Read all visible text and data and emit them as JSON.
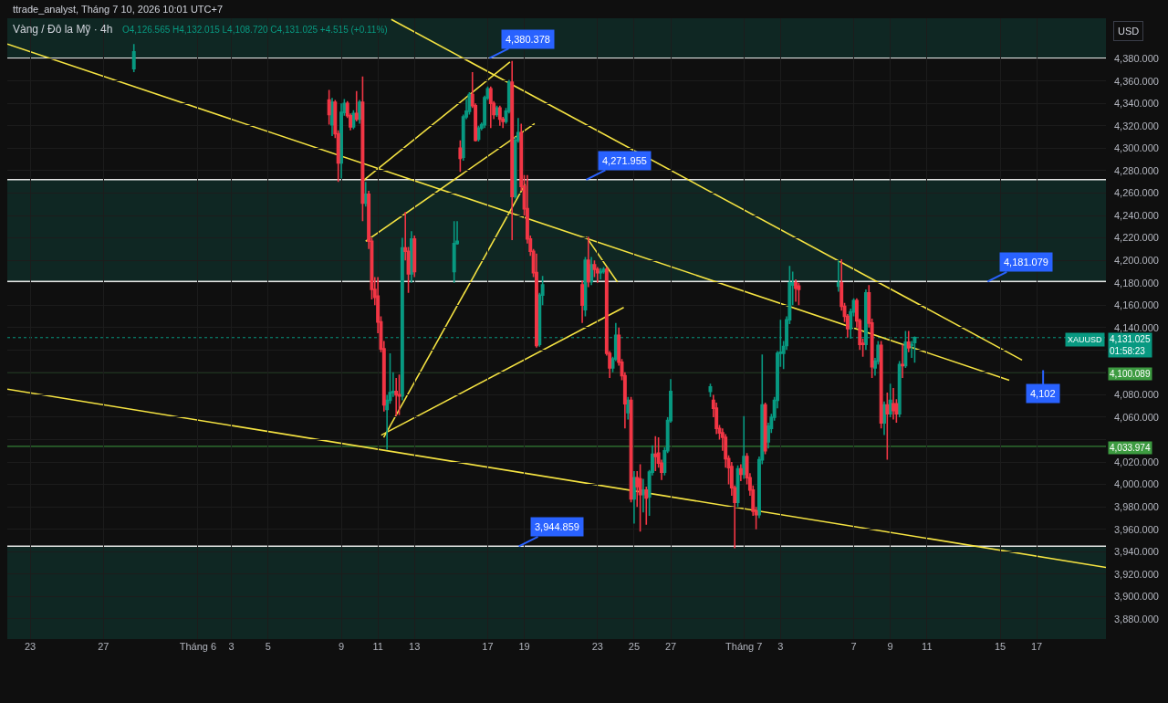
{
  "chart_data": {
    "type": "candlestick",
    "title": "Vàng / Đô la Mỹ · 4h",
    "subtitle": "O4,126.565 H4,132.015 L4,108.720 C4,131.025 +4.515 (+0.11%)",
    "ylabel": "USD",
    "x": [
      "2026-05-28T16:00",
      "2026-06-08T08:00",
      "2026-06-08T12:00",
      "2026-06-08T16:00",
      "2026-06-08T20:00",
      "2026-06-09T00:00",
      "2026-06-09T04:00",
      "2026-06-09T08:00",
      "2026-06-09T12:00",
      "2026-06-09T16:00",
      "2026-06-09T20:00",
      "2026-06-10T00:00",
      "2026-06-10T04:00",
      "2026-06-10T08:00",
      "2026-06-10T12:00",
      "2026-06-10T16:00",
      "2026-06-10T20:00",
      "2026-06-11T00:00",
      "2026-06-11T04:00",
      "2026-06-11T08:00",
      "2026-06-11T12:00",
      "2026-06-11T16:00",
      "2026-06-11T20:00",
      "2026-06-12T00:00",
      "2026-06-12T04:00",
      "2026-06-12T08:00",
      "2026-06-12T12:00",
      "2026-06-12T16:00",
      "2026-06-12T20:00",
      "2026-06-13T00:00",
      "2026-06-15T04:00",
      "2026-06-15T08:00",
      "2026-06-15T12:00",
      "2026-06-15T16:00",
      "2026-06-15T20:00",
      "2026-06-16T00:00",
      "2026-06-16T04:00",
      "2026-06-16T08:00",
      "2026-06-16T12:00",
      "2026-06-16T16:00",
      "2026-06-16T20:00",
      "2026-06-17T00:00",
      "2026-06-17T04:00",
      "2026-06-17T08:00",
      "2026-06-17T12:00",
      "2026-06-17T16:00",
      "2026-06-17T20:00",
      "2026-06-18T00:00",
      "2026-06-18T04:00",
      "2026-06-18T08:00",
      "2026-06-18T12:00",
      "2026-06-18T16:00",
      "2026-06-18T20:00",
      "2026-06-19T00:00",
      "2026-06-19T04:00",
      "2026-06-19T08:00",
      "2026-06-19T12:00",
      "2026-06-19T16:00",
      "2026-06-19T20:00",
      "2026-06-20T00:00",
      "2026-06-22T04:00",
      "2026-06-22T08:00",
      "2026-06-22T12:00",
      "2026-06-22T16:00",
      "2026-06-22T20:00",
      "2026-06-23T00:00",
      "2026-06-23T04:00",
      "2026-06-23T08:00",
      "2026-06-23T12:00",
      "2026-06-23T16:00",
      "2026-06-23T20:00",
      "2026-06-24T00:00",
      "2026-06-24T04:00",
      "2026-06-24T08:00",
      "2026-06-24T12:00",
      "2026-06-24T16:00",
      "2026-06-24T20:00",
      "2026-06-25T00:00",
      "2026-06-25T04:00",
      "2026-06-25T08:00",
      "2026-06-25T12:00",
      "2026-06-25T16:00",
      "2026-06-25T20:00",
      "2026-06-26T00:00",
      "2026-06-26T04:00",
      "2026-06-26T08:00",
      "2026-06-26T12:00",
      "2026-06-26T16:00",
      "2026-06-26T20:00",
      "2026-06-27T00:00",
      "2026-06-29T04:00",
      "2026-06-29T08:00",
      "2026-06-29T12:00",
      "2026-06-29T16:00",
      "2026-06-29T20:00",
      "2026-06-30T00:00",
      "2026-06-30T04:00",
      "2026-06-30T08:00",
      "2026-06-30T12:00",
      "2026-06-30T16:00",
      "2026-06-30T20:00",
      "2026-07-01T00:00",
      "2026-07-01T04:00",
      "2026-07-01T08:00",
      "2026-07-01T12:00",
      "2026-07-01T16:00",
      "2026-07-01T20:00",
      "2026-07-02T00:00",
      "2026-07-02T04:00",
      "2026-07-02T08:00",
      "2026-07-02T12:00",
      "2026-07-02T16:00",
      "2026-07-02T20:00",
      "2026-07-03T00:00",
      "2026-07-03T04:00",
      "2026-07-03T08:00",
      "2026-07-03T12:00",
      "2026-07-03T16:00",
      "2026-07-03T20:00",
      "2026-07-04T00:00",
      "2026-07-06T04:00",
      "2026-07-06T08:00",
      "2026-07-06T12:00",
      "2026-07-06T16:00",
      "2026-07-06T20:00",
      "2026-07-07T00:00",
      "2026-07-07T04:00",
      "2026-07-07T08:00",
      "2026-07-07T12:00",
      "2026-07-07T16:00",
      "2026-07-07T20:00",
      "2026-07-08T00:00",
      "2026-07-08T04:00",
      "2026-07-08T08:00",
      "2026-07-08T12:00",
      "2026-07-08T16:00",
      "2026-07-08T20:00",
      "2026-07-09T00:00",
      "2026-07-09T04:00",
      "2026-07-09T08:00",
      "2026-07-09T12:00",
      "2026-07-09T16:00",
      "2026-07-09T20:00",
      "2026-07-10T00:00",
      "2026-07-10T04:00",
      "2026-07-10T08:00"
    ],
    "ohlc": [
      [
        4371,
        4393,
        4368,
        4386
      ],
      [
        4343,
        4352,
        4321,
        4330
      ],
      [
        4321,
        4345,
        4311,
        4341
      ],
      [
        4341,
        4343,
        4309,
        4313
      ],
      [
        4313,
        4316,
        4270,
        4287
      ],
      [
        4287,
        4340,
        4273,
        4332
      ],
      [
        4332,
        4344,
        4329,
        4340
      ],
      [
        4340,
        4342,
        4327,
        4329
      ],
      [
        4329,
        4331,
        4316,
        4319
      ],
      [
        4319,
        4334,
        4317,
        4331
      ],
      [
        4331,
        4351,
        4324,
        4326
      ],
      [
        4326,
        4343,
        4322,
        4341
      ],
      [
        4341,
        4364,
        4235,
        4251
      ],
      [
        4251,
        4270,
        4248,
        4259
      ],
      [
        4259,
        4262,
        4210,
        4217
      ],
      [
        4217,
        4220,
        4165,
        4174
      ],
      [
        4174,
        4185,
        4160,
        4167
      ],
      [
        4168,
        4185,
        4135,
        4145
      ],
      [
        4145,
        4150,
        4118,
        4121
      ],
      [
        4121,
        4128,
        4065,
        4071
      ],
      [
        4067,
        4080,
        4031,
        4075
      ],
      [
        4075,
        4117,
        4072,
        4082
      ],
      [
        4082,
        4100,
        4078,
        4083
      ],
      [
        4083,
        4095,
        4061,
        4080
      ],
      [
        4080,
        4098,
        4062,
        4079
      ],
      [
        4079,
        4220,
        4075,
        4211
      ],
      [
        4211,
        4243,
        4200,
        4208
      ],
      [
        4208,
        4212,
        4171,
        4188
      ],
      [
        4188,
        4226,
        4180,
        4219
      ],
      [
        4219,
        4222,
        4185,
        4190
      ],
      [
        4190,
        4235,
        4180,
        4215
      ],
      [
        4215,
        4235,
        4214,
        4217
      ],
      [
        4300,
        4307,
        4279,
        4291
      ],
      [
        4292,
        4330,
        4289,
        4328
      ],
      [
        4328,
        4344,
        4326,
        4333
      ],
      [
        4333,
        4350,
        4330,
        4348
      ],
      [
        4348,
        4368,
        4336,
        4338
      ],
      [
        4338,
        4340,
        4306,
        4307
      ],
      [
        4308,
        4320,
        4306,
        4318
      ],
      [
        4318,
        4323,
        4316,
        4321
      ],
      [
        4321,
        4347,
        4318,
        4345
      ],
      [
        4345,
        4355,
        4343,
        4353
      ],
      [
        4353,
        4355,
        4318,
        4340
      ],
      [
        4340,
        4342,
        4326,
        4330
      ],
      [
        4330,
        4338,
        4328,
        4336
      ],
      [
        4336,
        4338,
        4320,
        4326
      ],
      [
        4326,
        4328,
        4318,
        4324
      ],
      [
        4324,
        4336,
        4322,
        4333
      ],
      [
        4333,
        4361,
        4331,
        4359
      ],
      [
        4359,
        4378,
        4218,
        4257
      ],
      [
        4257,
        4310,
        4255,
        4307
      ],
      [
        4307,
        4327,
        4305,
        4314
      ],
      [
        4314,
        4322,
        4262,
        4266
      ],
      [
        4266,
        4276,
        4240,
        4246
      ],
      [
        4246,
        4276,
        4215,
        4219
      ],
      [
        4219,
        4222,
        4204,
        4208
      ],
      [
        4208,
        4210,
        4185,
        4189
      ],
      [
        4189,
        4206,
        4122,
        4124
      ],
      [
        4125,
        4171,
        4123,
        4169
      ],
      [
        4169,
        4186,
        4160,
        4178
      ],
      [
        4178,
        4182,
        4144,
        4160
      ],
      [
        4156,
        4203,
        4150,
        4200
      ],
      [
        4200,
        4221,
        4176,
        4181
      ],
      [
        4181,
        4203,
        4178,
        4196
      ],
      [
        4196,
        4200,
        4185,
        4192
      ],
      [
        4192,
        4194,
        4180,
        4189
      ],
      [
        4189,
        4193,
        4183,
        4190
      ],
      [
        4190,
        4194,
        4188,
        4192
      ],
      [
        4192,
        4194,
        4115,
        4117
      ],
      [
        4117,
        4119,
        4095,
        4104
      ],
      [
        4104,
        4114,
        4100,
        4112
      ],
      [
        4112,
        4144,
        4110,
        4133
      ],
      [
        4133,
        4140,
        4106,
        4109
      ],
      [
        4109,
        4112,
        4093,
        4097
      ],
      [
        4097,
        4100,
        4050,
        4072
      ],
      [
        4064,
        4078,
        4058,
        4075
      ],
      [
        4075,
        4078,
        3984,
        3987
      ],
      [
        3987,
        4012,
        3965,
        4006
      ],
      [
        4006,
        4012,
        3980,
        3998
      ],
      [
        4005,
        4018,
        3958,
        3991
      ],
      [
        3991,
        4005,
        3975,
        3995
      ],
      [
        3995,
        3998,
        3964,
        3988
      ],
      [
        3989,
        4013,
        3972,
        4011
      ],
      [
        4011,
        4035,
        4008,
        4027
      ],
      [
        4027,
        4043,
        4012,
        4025
      ],
      [
        4028,
        4042,
        4015,
        4019
      ],
      [
        4019,
        4022,
        4004,
        4011
      ],
      [
        4011,
        4033,
        4008,
        4030
      ],
      [
        4030,
        4060,
        4028,
        4057
      ],
      [
        4057,
        4094,
        4055,
        4083
      ],
      [
        4083,
        4090,
        4078,
        4087
      ],
      [
        4075,
        4080,
        4060,
        4068
      ],
      [
        4068,
        4073,
        4045,
        4050
      ],
      [
        4050,
        4053,
        4040,
        4046
      ],
      [
        4046,
        4050,
        4030,
        4042
      ],
      [
        4042,
        4045,
        4015,
        4023
      ],
      [
        4023,
        4026,
        4000,
        4015
      ],
      [
        4016,
        4020,
        3990,
        3997
      ],
      [
        3997,
        3999,
        3943,
        3984
      ],
      [
        3984,
        4017,
        3980,
        4014
      ],
      [
        4014,
        4018,
        4003,
        4009
      ],
      [
        4009,
        4061,
        4005,
        4025
      ],
      [
        4025,
        4028,
        4000,
        4006
      ],
      [
        4006,
        4010,
        3990,
        3995
      ],
      [
        3995,
        3999,
        3972,
        3976
      ],
      [
        3976,
        3980,
        3960,
        3973
      ],
      [
        3973,
        4025,
        3970,
        4022
      ],
      [
        4022,
        4116,
        4018,
        4071
      ],
      [
        4071,
        4073,
        4027,
        4030
      ],
      [
        4038,
        4055,
        4032,
        4052
      ],
      [
        4050,
        4063,
        4046,
        4060
      ],
      [
        4060,
        4078,
        4057,
        4075
      ],
      [
        4075,
        4119,
        4068,
        4117
      ],
      [
        4117,
        4147,
        4105,
        4118
      ],
      [
        4117,
        4128,
        4103,
        4123
      ],
      [
        4124,
        4150,
        4120,
        4147
      ],
      [
        4147,
        4195,
        4143,
        4180
      ],
      [
        4178,
        4190,
        4160,
        4180
      ],
      [
        4180,
        4183,
        4163,
        4175
      ],
      [
        4177,
        4180,
        4160,
        4174
      ],
      [
        4177,
        4200,
        4172,
        4180
      ],
      [
        4180,
        4201,
        4155,
        4159
      ],
      [
        4159,
        4162,
        4145,
        4150
      ],
      [
        4150,
        4152,
        4131,
        4139
      ],
      [
        4139,
        4157,
        4130,
        4154
      ],
      [
        4154,
        4166,
        4150,
        4164
      ],
      [
        4164,
        4166,
        4140,
        4146
      ],
      [
        4146,
        4148,
        4120,
        4125
      ],
      [
        4126,
        4130,
        4114,
        4125
      ],
      [
        4125,
        4174,
        4120,
        4171
      ],
      [
        4171,
        4178,
        4140,
        4144
      ],
      [
        4144,
        4148,
        4095,
        4105
      ],
      [
        4104,
        4113,
        4097,
        4110
      ],
      [
        4110,
        4128,
        4107,
        4124
      ],
      [
        4124,
        4128,
        4050,
        4055
      ],
      [
        4055,
        4074,
        4044,
        4071
      ],
      [
        4071,
        4082,
        4022,
        4063
      ],
      [
        4063,
        4090,
        4060,
        4075
      ],
      [
        4072,
        4086,
        4058,
        4066
      ],
      [
        4072,
        4076,
        4055,
        4063
      ],
      [
        4063,
        4110,
        4060,
        4107
      ],
      [
        4107,
        4125,
        4095,
        4106
      ],
      [
        4106,
        4137,
        4104,
        4127
      ],
      [
        4127,
        4137,
        4118,
        4122
      ],
      [
        4124,
        4128,
        4113,
        4125
      ],
      [
        4126.565,
        4132.015,
        4108.72,
        4131.025
      ]
    ],
    "colors": [
      "#089981",
      "#f23645",
      "#089981",
      "#f23645",
      "#f23645",
      "#089981",
      "#089981",
      "#f23645",
      "#f23645",
      "#089981",
      "#f23645",
      "#089981",
      "#f23645",
      "#089981",
      "#f23645",
      "#f23645",
      "#f23645",
      "#f23645",
      "#f23645",
      "#f23645",
      "#089981",
      "#089981",
      "#089981",
      "#f23645",
      "#f23645",
      "#089981",
      "#f23645",
      "#f23645",
      "#089981",
      "#f23645",
      "#089981",
      "#089981",
      "#f23645",
      "#089981",
      "#089981",
      "#089981",
      "#f23645",
      "#f23645",
      "#089981",
      "#089981",
      "#089981",
      "#089981",
      "#f23645",
      "#f23645",
      "#089981",
      "#f23645",
      "#f23645",
      "#089981",
      "#089981",
      "#f23645",
      "#089981",
      "#089981",
      "#f23645",
      "#f23645",
      "#f23645",
      "#f23645",
      "#f23645",
      "#f23645",
      "#089981",
      "#089981",
      "#f23645",
      "#089981",
      "#f23645",
      "#089981",
      "#f23645",
      "#f23645",
      "#089981",
      "#089981",
      "#f23645",
      "#f23645",
      "#089981",
      "#089981",
      "#f23645",
      "#f23645",
      "#f23645",
      "#089981",
      "#f23645",
      "#089981",
      "#f23645",
      "#f23645",
      "#089981",
      "#f23645",
      "#089981",
      "#089981",
      "#f23645",
      "#f23645",
      "#f23645",
      "#089981",
      "#089981",
      "#089981",
      "#089981",
      "#f23645",
      "#f23645",
      "#f23645",
      "#f23645",
      "#f23645",
      "#f23645",
      "#f23645",
      "#f23645",
      "#089981",
      "#f23645",
      "#089981",
      "#f23645",
      "#f23645",
      "#f23645",
      "#f23645",
      "#089981",
      "#089981",
      "#f23645",
      "#089981",
      "#089981",
      "#089981",
      "#089981",
      "#089981",
      "#089981",
      "#089981",
      "#089981",
      "#089981",
      "#f23645",
      "#f23645",
      "#089981",
      "#f23645",
      "#f23645",
      "#f23645",
      "#089981",
      "#089981",
      "#f23645",
      "#f23645",
      "#f23645",
      "#089981",
      "#f23645",
      "#f23645",
      "#089981",
      "#089981",
      "#f23645",
      "#089981",
      "#f23645",
      "#089981",
      "#f23645",
      "#f23645",
      "#089981",
      "#f23645",
      "#089981",
      "#f23645",
      "#089981",
      "#089981"
    ],
    "series": [
      {
        "type": "line",
        "color": "#f5e342",
        "x": [
          "2026-05-21T18:00",
          "2026-07-15T12:00"
        ],
        "values": [
          4393,
          4093
        ]
      },
      {
        "type": "line",
        "color": "#f5e342",
        "x": [
          "2026-06-11T17:36",
          "2026-07-16T04:48"
        ],
        "values": [
          4415,
          4111
        ]
      },
      {
        "type": "line",
        "color": "#f5e342",
        "x": [
          "2026-05-21T18:00",
          "2026-07-20T18:48"
        ],
        "values": [
          4085,
          3926
        ]
      },
      {
        "type": "line",
        "color": "#f5e342",
        "x": [
          "2026-06-10T04:48",
          "2026-06-18T05:12"
        ],
        "values": [
          4271,
          4377
        ]
      },
      {
        "type": "line",
        "color": "#f5e342",
        "x": [
          "2026-06-10T08:00",
          "2026-06-19T13:36"
        ],
        "values": [
          4217,
          4322
        ]
      },
      {
        "type": "line",
        "color": "#f5e342",
        "x": [
          "2026-06-11T07:36",
          "2026-06-19T01:12"
        ],
        "values": [
          4042,
          4268
        ]
      },
      {
        "type": "line",
        "color": "#f5e342",
        "x": [
          "2026-06-11T04:24",
          "2026-06-24T10:24"
        ],
        "values": [
          4044,
          4158
        ]
      },
      {
        "type": "line",
        "color": "#f5e342",
        "x": [
          "2026-06-22T09:12",
          "2026-06-24T02:48"
        ],
        "values": [
          4221,
          4180
        ]
      }
    ],
    "bands": [
      {
        "axis": "y",
        "from": 4380.378,
        "to": 4416,
        "color": "#0f2723"
      },
      {
        "axis": "y",
        "from": 4181.079,
        "to": 4271.955,
        "color": "#0f2723"
      },
      {
        "axis": "y",
        "from": 3862,
        "to": 3944.859,
        "color": "#0f2723"
      }
    ],
    "ref_lines": [
      {
        "axis": "y",
        "value": 4131.025,
        "label": "4,131.025\n01:58:23",
        "color": "#089981",
        "line_style": "dotted"
      },
      {
        "axis": "y",
        "value": 4100.089,
        "label": "4,100.089",
        "color": "#3d9b41"
      },
      {
        "axis": "y",
        "value": 4033.974,
        "label": "4,033.974",
        "color": "#3d9b41"
      }
    ],
    "annotations": [
      "ttrade_analyst, Tháng 7 10, 2026 10:01 UTC+7",
      {
        "text": "XAUUSD",
        "y": 4131.025
      },
      {
        "text": "4,380.378",
        "x": "2026-06-17T02:24",
        "y": 4380.378
      },
      {
        "text": "4,271.955",
        "x": "2026-06-22T09:12",
        "y": 4271.955
      },
      {
        "text": "4,181.079",
        "x": "2026-07-14T07:36",
        "y": 4181.079
      },
      {
        "text": "3,944.859",
        "x": "2026-06-18T16:48",
        "y": 3944.859
      },
      {
        "text": "4,102",
        "x": "2026-07-17T08:24",
        "y": 4102
      }
    ],
    "xlim": [
      "2026-05-21T18:00",
      "2026-07-20T18:48"
    ],
    "ylim": [
      3862,
      4416
    ],
    "xticks": [
      {
        "value": "2026-05-23",
        "label": "23"
      },
      {
        "value": "2026-05-27",
        "label": "27"
      },
      {
        "value": "2026-06-01T04:00",
        "label": "Tháng 6"
      },
      {
        "value": "2026-06-03",
        "label": "3"
      },
      {
        "value": "2026-06-05",
        "label": "5"
      },
      {
        "value": "2026-06-09",
        "label": "9"
      },
      {
        "value": "2026-06-11",
        "label": "11"
      },
      {
        "value": "2026-06-13",
        "label": "13"
      },
      {
        "value": "2026-06-17",
        "label": "17"
      },
      {
        "value": "2026-06-19",
        "label": "19"
      },
      {
        "value": "2026-06-23",
        "label": "23"
      },
      {
        "value": "2026-06-25",
        "label": "25"
      },
      {
        "value": "2026-06-27",
        "label": "27"
      },
      {
        "value": "2026-07-01",
        "label": "Tháng 7"
      },
      {
        "value": "2026-07-03",
        "label": "3"
      },
      {
        "value": "2026-07-07",
        "label": "7"
      },
      {
        "value": "2026-07-09",
        "label": "9"
      },
      {
        "value": "2026-07-11",
        "label": "11"
      },
      {
        "value": "2026-07-15",
        "label": "15"
      },
      {
        "value": "2026-07-17",
        "label": "17"
      }
    ],
    "yticks": [
      {
        "value": 3880,
        "label": "3,880.000"
      },
      {
        "value": 3900,
        "label": "3,900.000"
      },
      {
        "value": 3920,
        "label": "3,920.000"
      },
      {
        "value": 3940,
        "label": "3,940.000"
      },
      {
        "value": 3960,
        "label": "3,960.000"
      },
      {
        "value": 3980,
        "label": "3,980.000"
      },
      {
        "value": 4000,
        "label": "4,000.000"
      },
      {
        "value": 4020,
        "label": "4,020.000"
      },
      {
        "value": 4040,
        "label": null
      },
      {
        "value": 4060,
        "label": "4,060.000"
      },
      {
        "value": 4080,
        "label": "4,080.000"
      },
      {
        "value": 4100,
        "label": null
      },
      {
        "value": 4120,
        "label": null
      },
      {
        "value": 4140,
        "label": "4,140.000"
      },
      {
        "value": 4160,
        "label": "4,160.000"
      },
      {
        "value": 4180,
        "label": "4,180.000"
      },
      {
        "value": 4200,
        "label": "4,200.000"
      },
      {
        "value": 4220,
        "label": "4,220.000"
      },
      {
        "value": 4240,
        "label": "4,240.000"
      },
      {
        "value": 4260,
        "label": "4,260.000"
      },
      {
        "value": 4280,
        "label": "4,280.000"
      },
      {
        "value": 4300,
        "label": "4,300.000"
      },
      {
        "value": 4320,
        "label": "4,320.000"
      },
      {
        "value": 4340,
        "label": "4,340.000"
      },
      {
        "value": 4360,
        "label": "4,360.000"
      },
      {
        "value": 4380,
        "label": "4,380.000"
      }
    ],
    "grid": true
  }
}
